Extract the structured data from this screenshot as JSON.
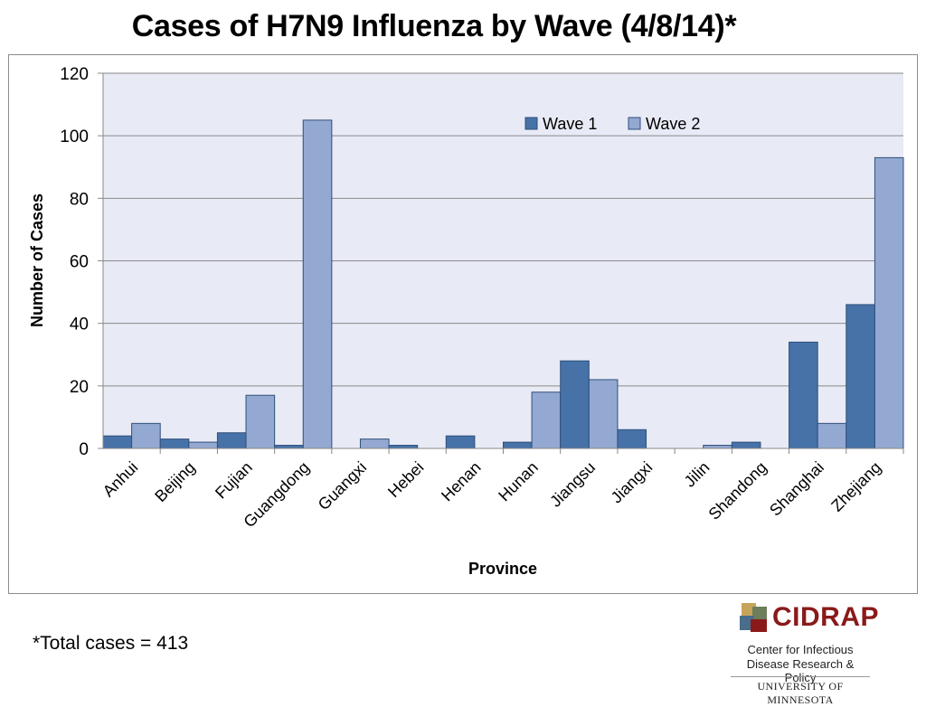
{
  "page": {
    "title": "Cases of H7N9 Influenza by Wave (4/8/14)*",
    "footnote": "*Total cases = 413"
  },
  "logo": {
    "name": "CIDRAP",
    "line1": "Center for Infectious",
    "line2": "Disease Research & Policy",
    "university": "UNIVERSITY OF MINNESOTA"
  },
  "chart_data": {
    "type": "bar",
    "title": "",
    "xlabel": "Province",
    "ylabel": "Number of Cases",
    "ylim": [
      0,
      120
    ],
    "yticks": [
      0,
      20,
      40,
      60,
      80,
      100,
      120
    ],
    "grid": true,
    "legend_position": "top-right",
    "categories": [
      "Anhui",
      "Beijing",
      "Fujian",
      "Guangdong",
      "Guangxi",
      "Hebei",
      "Henan",
      "Hunan",
      "Jiangsu",
      "Jiangxi",
      "Jilin",
      "Shandong",
      "Shanghai",
      "Zhejiang"
    ],
    "series": [
      {
        "name": "Wave 1",
        "color": "#4672a8",
        "values": [
          4,
          3,
          5,
          1,
          0,
          1,
          4,
          2,
          28,
          6,
          0,
          2,
          34,
          46
        ]
      },
      {
        "name": "Wave 2",
        "color": "#93a9d2",
        "values": [
          8,
          2,
          17,
          105,
          3,
          0,
          0,
          18,
          22,
          0,
          1,
          0,
          8,
          93
        ]
      }
    ],
    "plot_background": "#e8eaf6",
    "gridline_color": "#8a8a8a",
    "bar_edge_color": "#2f4f7a"
  }
}
